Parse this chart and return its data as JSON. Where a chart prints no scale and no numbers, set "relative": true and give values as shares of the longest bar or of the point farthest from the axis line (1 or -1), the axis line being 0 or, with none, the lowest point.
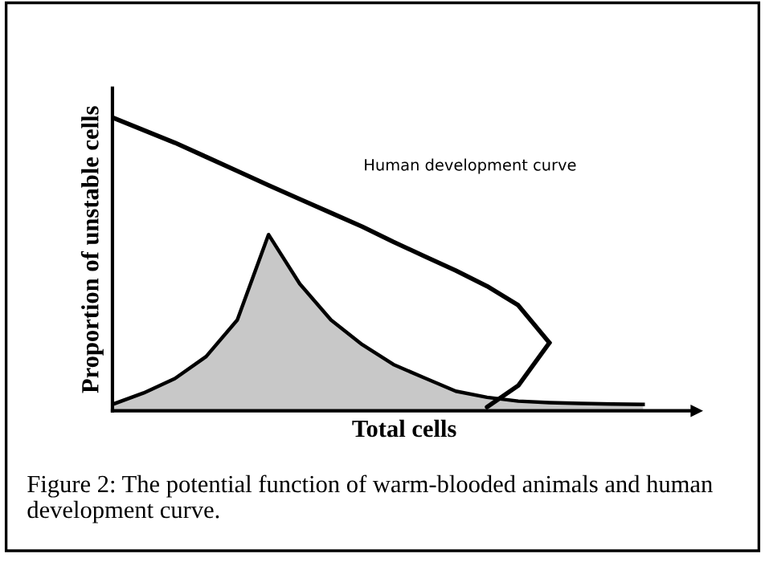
{
  "chart_data": {
    "type": "line",
    "relative": true,
    "xlabel": "Total cells",
    "ylabel": "Proportion of unstable cells",
    "tick_labels": false,
    "legend": false,
    "categories": [
      null,
      null,
      null,
      null,
      null,
      null,
      null,
      null,
      null,
      null,
      null,
      null,
      null,
      null,
      null,
      null,
      null,
      null
    ],
    "series": [
      {
        "type": "area",
        "color": "#000000",
        "values": [
          0.022,
          0.061,
          0.11,
          0.185,
          0.31,
          0.601,
          0.433,
          0.31,
          0.226,
          0.158,
          0.112,
          0.067,
          0.046,
          0.033,
          0.028,
          0.025,
          0.023,
          0.022
        ]
      },
      {
        "name": "Human development curve",
        "color": "#000000",
        "values": [
          1,
          0.957,
          0.914,
          0.866,
          0.818,
          0.769,
          0.722,
          0.675,
          0.628,
          0.576,
          0.527,
          0.478,
          0.425,
          0.36,
          0.232,
          null,
          null,
          null
        ]
      },
      {
        "color": "#000000",
        "values": [
          null,
          null,
          null,
          null,
          null,
          null,
          null,
          null,
          null,
          null,
          null,
          null,
          0.013,
          0.086,
          0.232,
          null,
          null,
          null
        ]
      }
    ],
    "annotations": [
      "Figure 2: The potential function of warm-blooded animals and human development curve."
    ]
  }
}
